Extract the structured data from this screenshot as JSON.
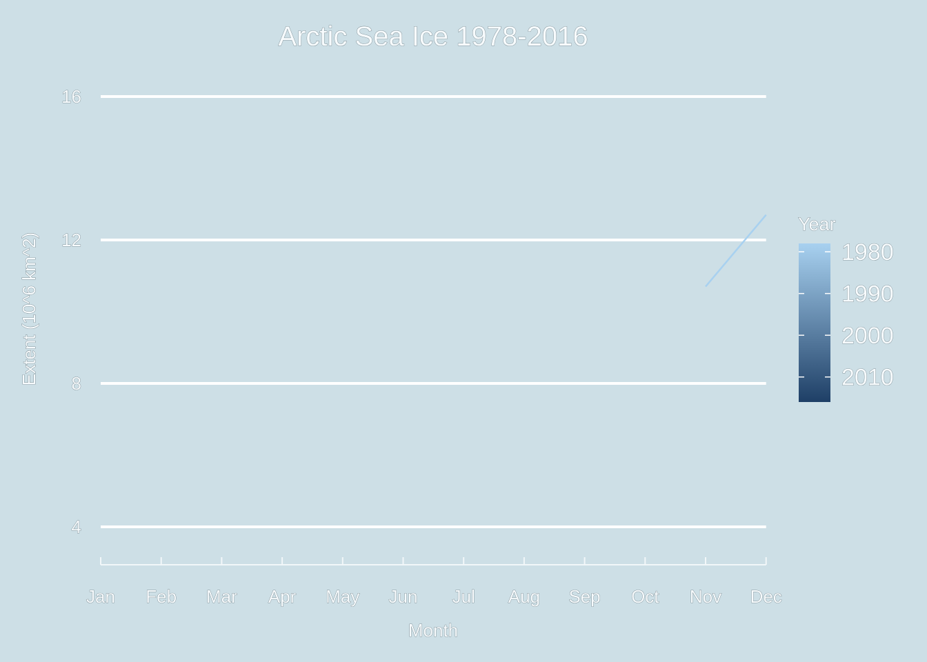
{
  "chart_data": {
    "type": "line",
    "title": "Arctic Sea Ice 1978-2016",
    "xlabel": "Month",
    "ylabel": "Extent (10^6 km^2)",
    "categories": [
      "Jan",
      "Feb",
      "Mar",
      "Apr",
      "May",
      "Jun",
      "Jul",
      "Aug",
      "Sep",
      "Oct",
      "Nov",
      "Dec"
    ],
    "ylim": [
      3,
      16.5
    ],
    "yticks": [
      4,
      8,
      12,
      16
    ],
    "grid": true,
    "series": [
      {
        "color": "#a8d1f0",
        "points": [
          {
            "x": "Nov",
            "y": 10.7
          },
          {
            "x": "Dec",
            "y": 12.7
          }
        ]
      }
    ],
    "legend": {
      "title": "Year",
      "placement": "right",
      "type": "colorbar",
      "range": [
        1978,
        2016
      ],
      "labels": [
        1980,
        1990,
        2000,
        2010
      ],
      "colors": {
        "low": "#a8d1f0",
        "high": "#1e3f66"
      }
    }
  }
}
